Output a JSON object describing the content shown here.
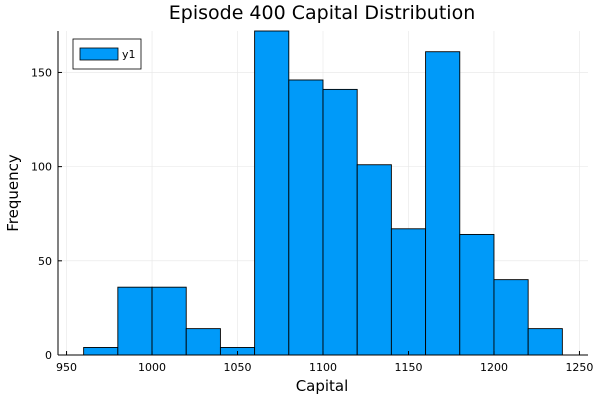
{
  "chart_data": {
    "type": "bar",
    "title": "Episode 400 Capital Distribution",
    "xlabel": "Capital",
    "ylabel": "Frequency",
    "xlim": [
      945,
      1255
    ],
    "ylim": [
      0,
      172
    ],
    "xticks": [
      950,
      1000,
      1050,
      1100,
      1150,
      1200,
      1250
    ],
    "yticks": [
      0,
      50,
      100,
      150
    ],
    "grid": true,
    "legend_position": "top-left",
    "series": [
      {
        "name": "y1",
        "color": "#009AF9",
        "bins": [
          {
            "x0": 960,
            "x1": 980,
            "count": 4
          },
          {
            "x0": 980,
            "x1": 1000,
            "count": 36
          },
          {
            "x0": 1000,
            "x1": 1020,
            "count": 36
          },
          {
            "x0": 1020,
            "x1": 1040,
            "count": 14
          },
          {
            "x0": 1040,
            "x1": 1060,
            "count": 4
          },
          {
            "x0": 1060,
            "x1": 1080,
            "count": 172
          },
          {
            "x0": 1080,
            "x1": 1100,
            "count": 146
          },
          {
            "x0": 1100,
            "x1": 1120,
            "count": 141
          },
          {
            "x0": 1120,
            "x1": 1140,
            "count": 101
          },
          {
            "x0": 1140,
            "x1": 1160,
            "count": 67
          },
          {
            "x0": 1160,
            "x1": 1180,
            "count": 161
          },
          {
            "x0": 1180,
            "x1": 1200,
            "count": 64
          },
          {
            "x0": 1200,
            "x1": 1220,
            "count": 40
          },
          {
            "x0": 1220,
            "x1": 1240,
            "count": 14
          }
        ]
      }
    ]
  }
}
